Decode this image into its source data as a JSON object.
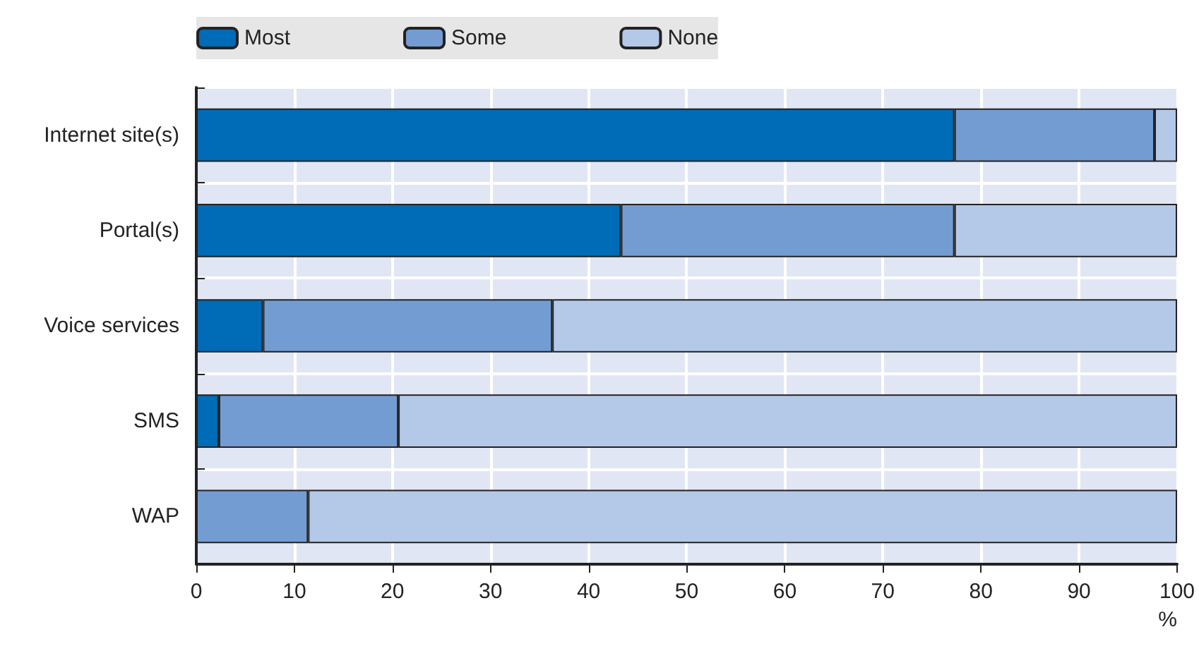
{
  "chart_data": {
    "type": "bar",
    "orientation": "horizontal",
    "stacked": true,
    "xlabel": "%",
    "categories": [
      "Internet site(s)",
      "Portal(s)",
      "Voice services",
      "SMS",
      "WAP"
    ],
    "series": [
      {
        "name": "Most",
        "color": "#006bb6",
        "values": [
          77.3,
          43.3,
          6.8,
          2.3,
          0
        ]
      },
      {
        "name": "Some",
        "color": "#739cd2",
        "values": [
          20.4,
          34.0,
          29.5,
          18.3,
          11.4
        ]
      },
      {
        "name": "None",
        "color": "#b4c8e8",
        "values": [
          2.3,
          22.7,
          63.7,
          79.4,
          88.6
        ]
      }
    ],
    "xlim": [
      0,
      100
    ],
    "xticks": [
      0,
      10,
      20,
      30,
      40,
      50,
      60,
      70,
      80,
      90,
      100
    ],
    "grid": true,
    "legend": "top"
  }
}
